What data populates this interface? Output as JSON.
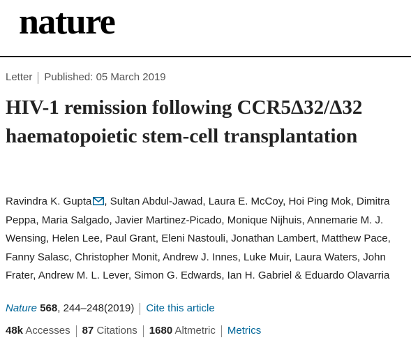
{
  "header": {
    "logo": "nature"
  },
  "article": {
    "type": "Letter",
    "published": "Published: 05 March 2019",
    "title": "HIV-1 remission following CCR5Δ32/Δ32 haematopoietic stem-cell transplantation",
    "authors": [
      "Ravindra K. Gupta",
      "Sultan Abdul-Jawad",
      "Laura E. McCoy",
      "Hoi Ping Mok",
      "Dimitra Peppa",
      "Maria Salgado",
      "Javier Martinez-Picado",
      "Monique Nijhuis",
      "Annemarie M. J. Wensing",
      "Helen Lee",
      "Paul Grant",
      "Eleni Nastouli",
      "Jonathan Lambert",
      "Matthew Pace",
      "Fanny Salasc",
      "Christopher Monit",
      "Andrew J. Innes",
      "Luke Muir",
      "Laura Waters",
      "John Frater",
      "Andrew M. L. Lever",
      "Simon G. Edwards",
      "Ian H. Gabriel",
      "Eduardo Olavarria"
    ],
    "author_separator": ",",
    "author_conjunction": "&",
    "citation": {
      "journal": "Nature",
      "volume": "568",
      "pages_year": ", 244–248(2019)",
      "cite_link": "Cite this article"
    },
    "metrics": [
      {
        "value": "48k",
        "label": "Accesses"
      },
      {
        "value": "87",
        "label": "Citations"
      },
      {
        "value": "1680",
        "label": "Altmetric"
      }
    ],
    "metrics_link": "Metrics"
  }
}
